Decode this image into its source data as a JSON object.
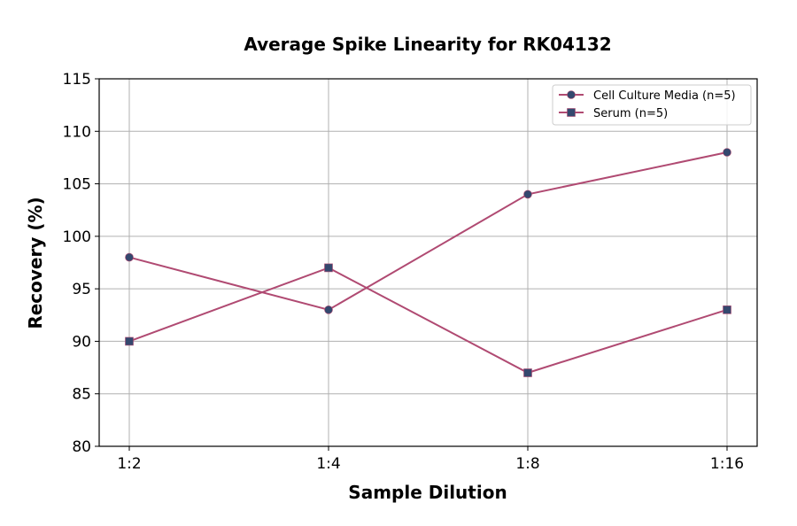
{
  "chart_data": {
    "type": "line",
    "title": "Average Spike Linearity for RK04132",
    "xlabel": "Sample Dilution",
    "ylabel": "Recovery (%)",
    "categories": [
      "1:2",
      "1:4",
      "1:8",
      "1:16"
    ],
    "ylim": [
      80,
      115
    ],
    "yticks": [
      80,
      85,
      90,
      95,
      100,
      105,
      110,
      115
    ],
    "grid": true,
    "legend_position": "top-right",
    "line_color": "#b04a72",
    "marker_color": "#34486e",
    "series": [
      {
        "name": "Cell Culture Media (n=5)",
        "marker": "circle",
        "values": [
          98,
          93,
          104,
          108
        ]
      },
      {
        "name": "Serum (n=5)",
        "marker": "square",
        "values": [
          90,
          97,
          87,
          93
        ]
      }
    ]
  }
}
